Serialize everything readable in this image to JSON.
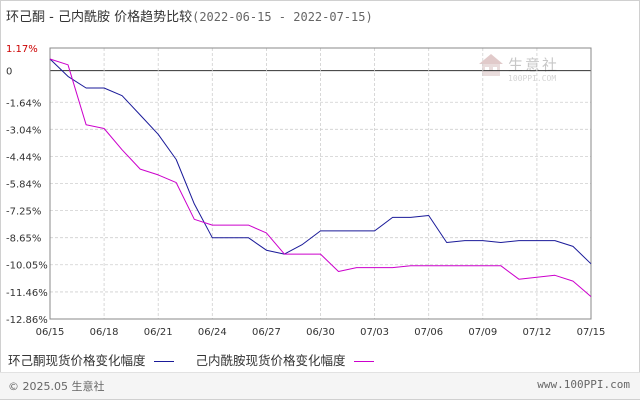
{
  "header": {
    "title": "环己酮 - 己内酰胺 价格趋势比较",
    "date_range": "(2022-06-15 - 2022-07-15)"
  },
  "watermark": {
    "brand": "生意社",
    "url": "100PPI.COM"
  },
  "footer": {
    "copyright": "© 2025.05 生意社",
    "url": "www.100PPI.com"
  },
  "chart_data": {
    "type": "line",
    "title": "环己酮 - 己内酰胺 价格趋势比较",
    "xlabel": "",
    "ylabel": "",
    "x": [
      "06/15",
      "06/16",
      "06/17",
      "06/18",
      "06/19",
      "06/20",
      "06/21",
      "06/22",
      "06/23",
      "06/24",
      "06/25",
      "06/26",
      "06/27",
      "06/28",
      "06/29",
      "06/30",
      "07/01",
      "07/02",
      "07/03",
      "07/04",
      "07/05",
      "07/06",
      "07/07",
      "07/08",
      "07/09",
      "07/10",
      "07/11",
      "07/12",
      "07/13",
      "07/14",
      "07/15"
    ],
    "x_ticks": [
      "06/15",
      "06/18",
      "06/21",
      "06/24",
      "06/27",
      "06/30",
      "07/03",
      "07/06",
      "07/09",
      "07/12",
      "07/15"
    ],
    "y_ticks": [
      "1.17%",
      "0",
      "-1.64%",
      "-3.04%",
      "-4.44%",
      "-5.84%",
      "-7.25%",
      "-8.65%",
      "-10.05%",
      "-11.46%",
      "-12.86%"
    ],
    "y_tick_values": [
      1.17,
      0,
      -1.64,
      -3.04,
      -4.44,
      -5.84,
      -7.25,
      -8.65,
      -10.05,
      -11.46,
      -12.86
    ],
    "ylim": [
      -12.86,
      1.17
    ],
    "grid": true,
    "legend_position": "bottom",
    "series": [
      {
        "name": "环己酮现货价格变化幅度",
        "color": "#1a1a99",
        "values": [
          0.6,
          -0.3,
          -0.9,
          -0.9,
          -1.3,
          -2.3,
          -3.3,
          -4.6,
          -6.9,
          -8.65,
          -8.65,
          -8.65,
          -9.3,
          -9.5,
          -9.0,
          -8.3,
          -8.3,
          -8.3,
          -8.3,
          -7.6,
          -7.6,
          -7.5,
          -8.9,
          -8.8,
          -8.8,
          -8.9,
          -8.8,
          -8.8,
          -8.8,
          -9.1,
          -10.0
        ]
      },
      {
        "name": "己内酰胺现货价格变化幅度",
        "color": "#cc00cc",
        "values": [
          0.6,
          0.3,
          -2.8,
          -3.0,
          -4.1,
          -5.1,
          -5.4,
          -5.8,
          -7.7,
          -8.0,
          -8.0,
          -8.0,
          -8.4,
          -9.5,
          -9.5,
          -9.5,
          -10.4,
          -10.2,
          -10.2,
          -10.2,
          -10.1,
          -10.1,
          -10.1,
          -10.1,
          -10.1,
          -10.1,
          -10.8,
          -10.7,
          -10.6,
          -10.9,
          -11.7
        ]
      }
    ]
  }
}
